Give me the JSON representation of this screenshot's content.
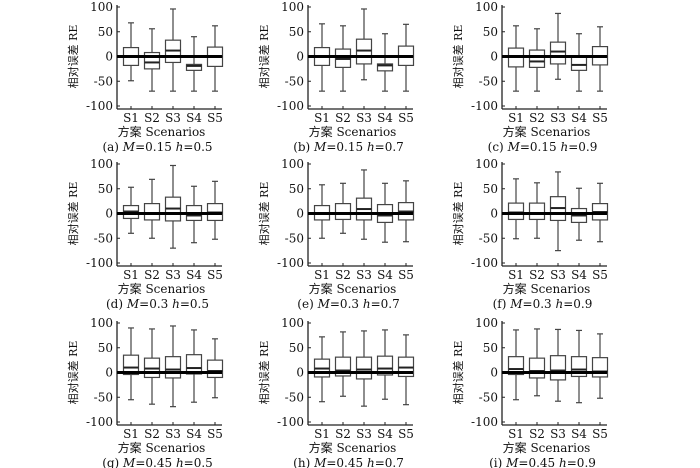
{
  "chart_data": {
    "type": "boxplot",
    "ylabel": "相对误差 RE",
    "xlabel": "方案 Scenarios",
    "categories": [
      "S1",
      "S2",
      "S3",
      "S4",
      "S5"
    ],
    "ylim": [
      -100,
      100
    ],
    "yticks": [
      100,
      50,
      0,
      -50,
      -100
    ],
    "reference_line": 0,
    "box_stat_order": [
      "whisker_low",
      "q1",
      "median",
      "q3",
      "whisker_high"
    ],
    "panels": [
      {
        "label": "(a)",
        "M": "0.15",
        "h": "0.5",
        "boxes": [
          [
            -49,
            -18,
            -1,
            18,
            68
          ],
          [
            -70,
            -25,
            -12,
            8,
            56
          ],
          [
            -70,
            -12,
            12,
            33,
            96
          ],
          [
            -70,
            -28,
            -19,
            -16,
            40
          ],
          [
            -70,
            -20,
            0,
            19,
            62
          ]
        ]
      },
      {
        "label": "(b)",
        "M": "0.15",
        "h": "0.7",
        "boxes": [
          [
            -70,
            -18,
            0,
            18,
            66
          ],
          [
            -70,
            -22,
            -5,
            15,
            62
          ],
          [
            -47,
            -15,
            12,
            35,
            96
          ],
          [
            -70,
            -29,
            -18,
            -15,
            46
          ],
          [
            -70,
            -18,
            0,
            21,
            65
          ]
        ]
      },
      {
        "label": "(c)",
        "M": "0.15",
        "h": "0.9",
        "boxes": [
          [
            -70,
            -21,
            0,
            17,
            62
          ],
          [
            -70,
            -22,
            -10,
            13,
            56
          ],
          [
            -46,
            -15,
            10,
            29,
            87
          ],
          [
            -70,
            -28,
            -17,
            0,
            46
          ],
          [
            -70,
            -17,
            0,
            20,
            60
          ]
        ]
      },
      {
        "label": "(d)",
        "M": "0.3",
        "h": "0.5",
        "boxes": [
          [
            -40,
            -10,
            4,
            16,
            53
          ],
          [
            -50,
            -13,
            0,
            20,
            69
          ],
          [
            -70,
            -15,
            10,
            33,
            97
          ],
          [
            -59,
            -14,
            -4,
            16,
            55
          ],
          [
            -52,
            -14,
            2,
            20,
            65
          ]
        ]
      },
      {
        "label": "(e)",
        "M": "0.3",
        "h": "0.7",
        "boxes": [
          [
            -50,
            -13,
            0,
            16,
            58
          ],
          [
            -40,
            -12,
            0,
            20,
            61
          ],
          [
            -52,
            -13,
            9,
            31,
            88
          ],
          [
            -58,
            -18,
            -4,
            18,
            61
          ],
          [
            -57,
            -13,
            4,
            22,
            66
          ]
        ]
      },
      {
        "label": "(f)",
        "M": "0.3",
        "h": "0.9",
        "boxes": [
          [
            -51,
            -12,
            2,
            21,
            70
          ],
          [
            -50,
            -12,
            0,
            21,
            62
          ],
          [
            -75,
            -14,
            11,
            34,
            84
          ],
          [
            -54,
            -18,
            -4,
            10,
            51
          ],
          [
            -57,
            -13,
            3,
            20,
            61
          ]
        ]
      },
      {
        "label": "(g)",
        "M": "0.45",
        "h": "0.5",
        "boxes": [
          [
            -55,
            -4,
            10,
            35,
            90
          ],
          [
            -64,
            -10,
            8,
            29,
            88
          ],
          [
            -69,
            -11,
            6,
            32,
            94
          ],
          [
            -60,
            -3,
            9,
            36,
            86
          ],
          [
            -51,
            -10,
            3,
            25,
            68
          ]
        ]
      },
      {
        "label": "(h)",
        "M": "0.45",
        "h": "0.7",
        "boxes": [
          [
            -59,
            -9,
            8,
            27,
            72
          ],
          [
            -48,
            -7,
            4,
            31,
            82
          ],
          [
            -68,
            -13,
            6,
            31,
            84
          ],
          [
            -54,
            -5,
            8,
            33,
            86
          ],
          [
            -65,
            -8,
            10,
            31,
            76
          ]
        ]
      },
      {
        "label": "(i)",
        "M": "0.45",
        "h": "0.9",
        "boxes": [
          [
            -55,
            -4,
            7,
            32,
            86
          ],
          [
            -47,
            -11,
            3,
            29,
            88
          ],
          [
            -58,
            -15,
            4,
            34,
            87
          ],
          [
            -61,
            -8,
            6,
            32,
            85
          ],
          [
            -52,
            -9,
            2,
            30,
            78
          ]
        ]
      }
    ]
  }
}
